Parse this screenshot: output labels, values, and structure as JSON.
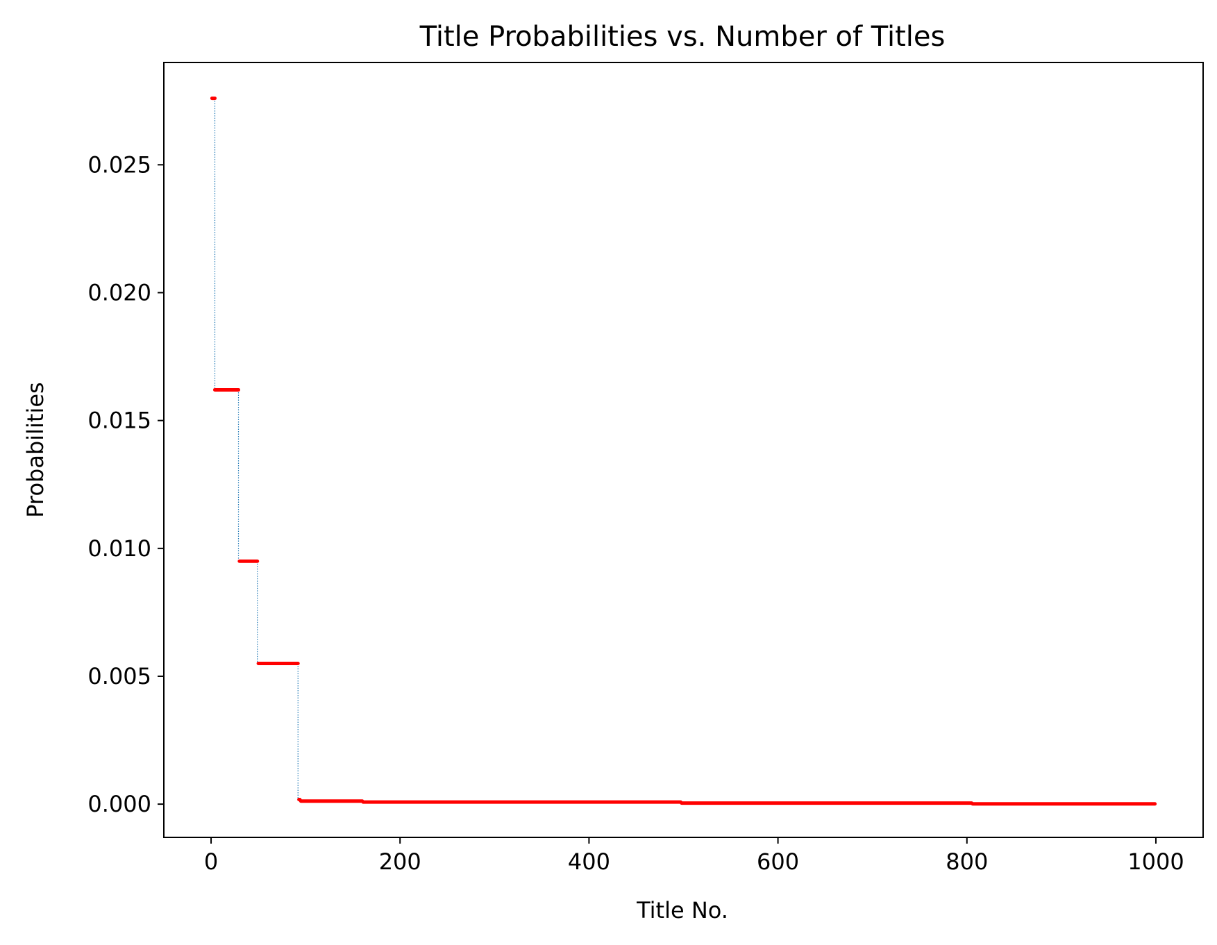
{
  "colors": {
    "background": "#ffffff",
    "axes": "#000000",
    "marker": "#ff0000",
    "connector": "#1f77b4"
  },
  "chart_data": {
    "type": "scatter",
    "title": "Title Probabilities vs. Number of Titles",
    "xlabel": "Title No.",
    "ylabel": "Probabilities",
    "xlim": [
      -50,
      1050
    ],
    "ylim": [
      -0.0013,
      0.029
    ],
    "xticks": [
      0,
      200,
      400,
      600,
      800,
      1000
    ],
    "xtick_labels": [
      "0",
      "200",
      "400",
      "600",
      "800",
      "1000"
    ],
    "yticks": [
      0.0,
      0.005,
      0.01,
      0.015,
      0.02,
      0.025
    ],
    "ytick_labels": [
      "0.000",
      "0.005",
      "0.010",
      "0.015",
      "0.020",
      "0.025"
    ],
    "grid": false,
    "legend": "none",
    "connector_style": "dotted",
    "series": [
      {
        "style": "step-scatter",
        "segments": [
          {
            "x_start": 1,
            "x_end": 4,
            "y": 0.0276
          },
          {
            "x_start": 4,
            "x_end": 29,
            "y": 0.0162
          },
          {
            "x_start": 30,
            "x_end": 49,
            "y": 0.0095
          },
          {
            "x_start": 50,
            "x_end": 92,
            "y": 0.0055
          },
          {
            "x_start": 93,
            "x_end": 94,
            "y": 0.00018
          },
          {
            "x_start": 95,
            "x_end": 160,
            "y": 0.00012
          },
          {
            "x_start": 161,
            "x_end": 497,
            "y": 8e-05
          },
          {
            "x_start": 498,
            "x_end": 805,
            "y": 4e-05
          },
          {
            "x_start": 806,
            "x_end": 999,
            "y": 1e-05
          }
        ]
      }
    ]
  }
}
